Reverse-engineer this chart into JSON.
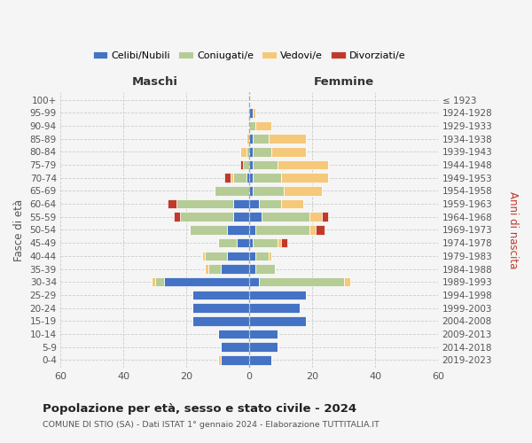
{
  "age_groups": [
    "0-4",
    "5-9",
    "10-14",
    "15-19",
    "20-24",
    "25-29",
    "30-34",
    "35-39",
    "40-44",
    "45-49",
    "50-54",
    "55-59",
    "60-64",
    "65-69",
    "70-74",
    "75-79",
    "80-84",
    "85-89",
    "90-94",
    "95-99",
    "100+"
  ],
  "birth_years": [
    "2019-2023",
    "2014-2018",
    "2009-2013",
    "2004-2008",
    "1999-2003",
    "1994-1998",
    "1989-1993",
    "1984-1988",
    "1979-1983",
    "1974-1978",
    "1969-1973",
    "1964-1968",
    "1959-1963",
    "1954-1958",
    "1949-1953",
    "1944-1948",
    "1939-1943",
    "1934-1938",
    "1929-1933",
    "1924-1928",
    "≤ 1923"
  ],
  "maschi": {
    "celibi": [
      9,
      9,
      10,
      18,
      18,
      18,
      27,
      9,
      7,
      4,
      7,
      5,
      5,
      0,
      1,
      0,
      0,
      0,
      0,
      0,
      0
    ],
    "coniugati": [
      0,
      0,
      0,
      0,
      0,
      0,
      3,
      4,
      7,
      6,
      12,
      17,
      18,
      11,
      4,
      2,
      1,
      0,
      0,
      0,
      0
    ],
    "vedovi": [
      1,
      0,
      0,
      0,
      0,
      0,
      1,
      1,
      1,
      0,
      0,
      0,
      0,
      0,
      1,
      0,
      2,
      1,
      0,
      0,
      0
    ],
    "divorziati": [
      0,
      0,
      0,
      0,
      0,
      0,
      0,
      0,
      0,
      0,
      0,
      2,
      3,
      0,
      2,
      1,
      0,
      0,
      0,
      0,
      0
    ]
  },
  "femmine": {
    "nubili": [
      7,
      9,
      9,
      18,
      16,
      18,
      3,
      2,
      2,
      1,
      2,
      4,
      3,
      1,
      1,
      1,
      1,
      1,
      0,
      1,
      0
    ],
    "coniugate": [
      0,
      0,
      0,
      0,
      0,
      0,
      27,
      6,
      4,
      8,
      17,
      15,
      7,
      10,
      9,
      8,
      6,
      5,
      2,
      0,
      0
    ],
    "vedove": [
      0,
      0,
      0,
      0,
      0,
      0,
      2,
      0,
      1,
      1,
      2,
      4,
      7,
      12,
      15,
      16,
      11,
      12,
      5,
      1,
      0
    ],
    "divorziate": [
      0,
      0,
      0,
      0,
      0,
      0,
      0,
      0,
      0,
      2,
      3,
      2,
      0,
      0,
      0,
      0,
      0,
      0,
      0,
      0,
      0
    ]
  },
  "colors": {
    "celibi": "#4472c4",
    "coniugati": "#b5cc96",
    "vedovi": "#f5c87a",
    "divorziati": "#c0392b"
  },
  "xlim": 60,
  "title": "Popolazione per età, sesso e stato civile - 2024",
  "subtitle": "COMUNE DI STIO (SA) - Dati ISTAT 1° gennaio 2024 - Elaborazione TUTTITALIA.IT",
  "xlabel_left": "Maschi",
  "xlabel_right": "Femmine",
  "ylabel": "Fasce di età",
  "ylabel_right": "Anni di nascita",
  "legend_labels": [
    "Celibi/Nubili",
    "Coniugati/e",
    "Vedovi/e",
    "Divorziati/e"
  ],
  "bg_color": "#f5f5f5"
}
